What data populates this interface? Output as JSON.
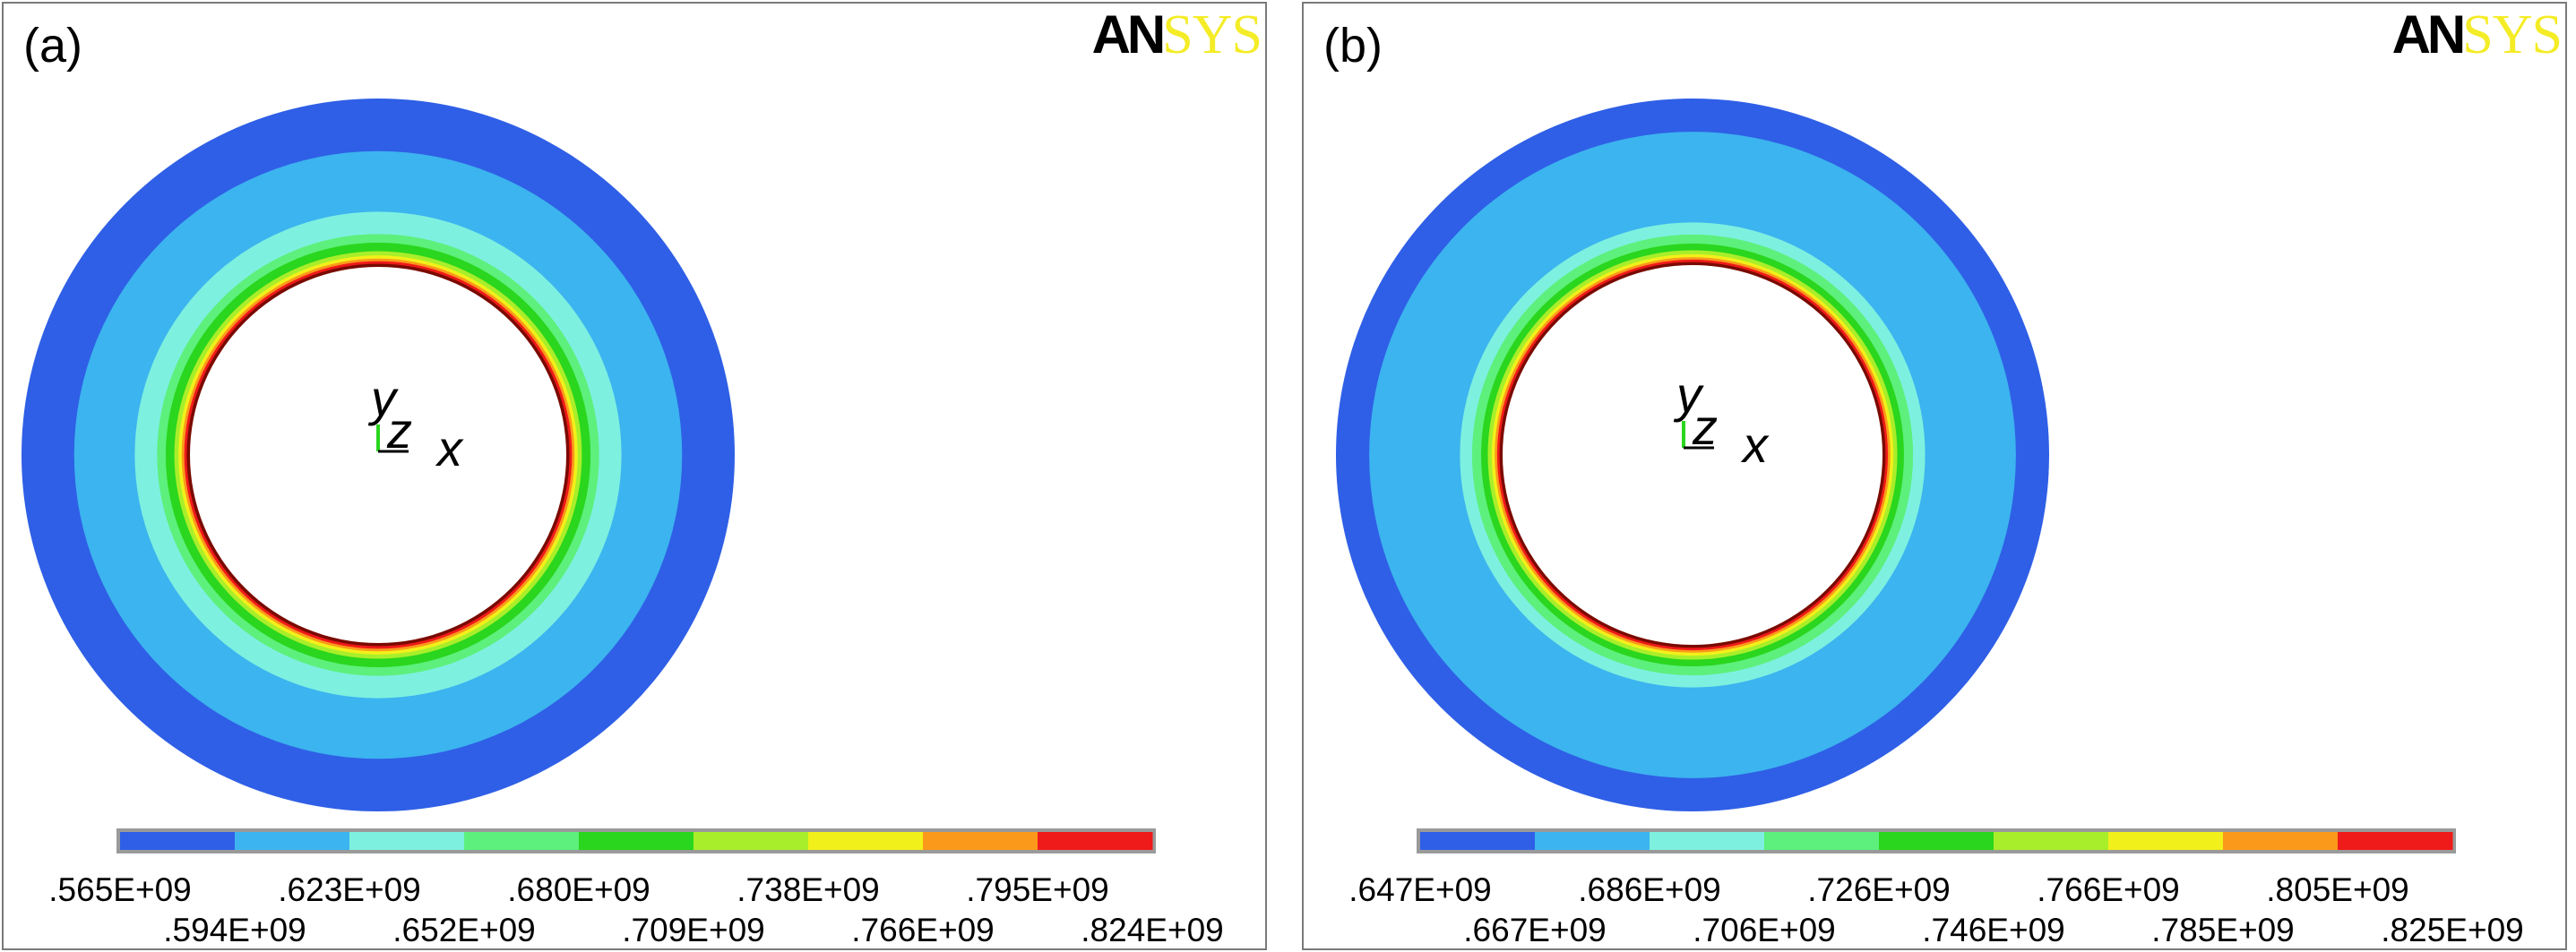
{
  "colormap": [
    "#2f5fe6",
    "#3cb4ef",
    "#7ef0e0",
    "#5df07c",
    "#2ad61e",
    "#a9ee2a",
    "#f2f01a",
    "#fb9a1a",
    "#ef1a1a"
  ],
  "logo": {
    "part1": "AN",
    "part2": "SYS",
    "colors": {
      "part1": "#000000",
      "part2": "#f4ec26"
    }
  },
  "axes": {
    "y": "y",
    "z": "z",
    "x": "x"
  },
  "chart_data": [
    {
      "type": "contour",
      "panel": "(a)",
      "title": "(a)",
      "legend_placement": "bottom",
      "legend_levels_top": [
        ".565E+09",
        ".623E+09",
        ".680E+09",
        ".738E+09",
        ".795E+09"
      ],
      "legend_levels_bottom": [
        ".594E+09",
        ".652E+09",
        ".709E+09",
        ".766E+09",
        ".824E+09"
      ],
      "band_colors_inner_to_outer": [
        "#7a0a00",
        "#ef1a1a",
        "#fb9a1a",
        "#f2f01a",
        "#a9ee2a",
        "#2ad61e",
        "#5df07c",
        "#7ef0e0",
        "#3cb4ef",
        "#2f5fe6"
      ],
      "band_widths_relative": [
        0.01,
        0.008,
        0.008,
        0.01,
        0.013,
        0.027,
        0.027,
        0.07,
        0.19,
        0.165
      ]
    },
    {
      "type": "contour",
      "panel": "(b)",
      "title": "(b)",
      "legend_placement": "bottom",
      "legend_levels_top": [
        ".647E+09",
        ".686E+09",
        ".726E+09",
        ".766E+09",
        ".805E+09"
      ],
      "legend_levels_bottom": [
        ".667E+09",
        ".706E+09",
        ".746E+09",
        ".785E+09",
        ".825E+09"
      ],
      "band_colors_inner_to_outer": [
        "#7a0a00",
        "#ef1a1a",
        "#fb9a1a",
        "#f2f01a",
        "#a9ee2a",
        "#2ad61e",
        "#5df07c",
        "#7ef0e0",
        "#3cb4ef",
        "#2f5fe6"
      ],
      "band_widths_relative": [
        0.01,
        0.008,
        0.008,
        0.01,
        0.013,
        0.022,
        0.03,
        0.04,
        0.3,
        0.11
      ]
    }
  ]
}
